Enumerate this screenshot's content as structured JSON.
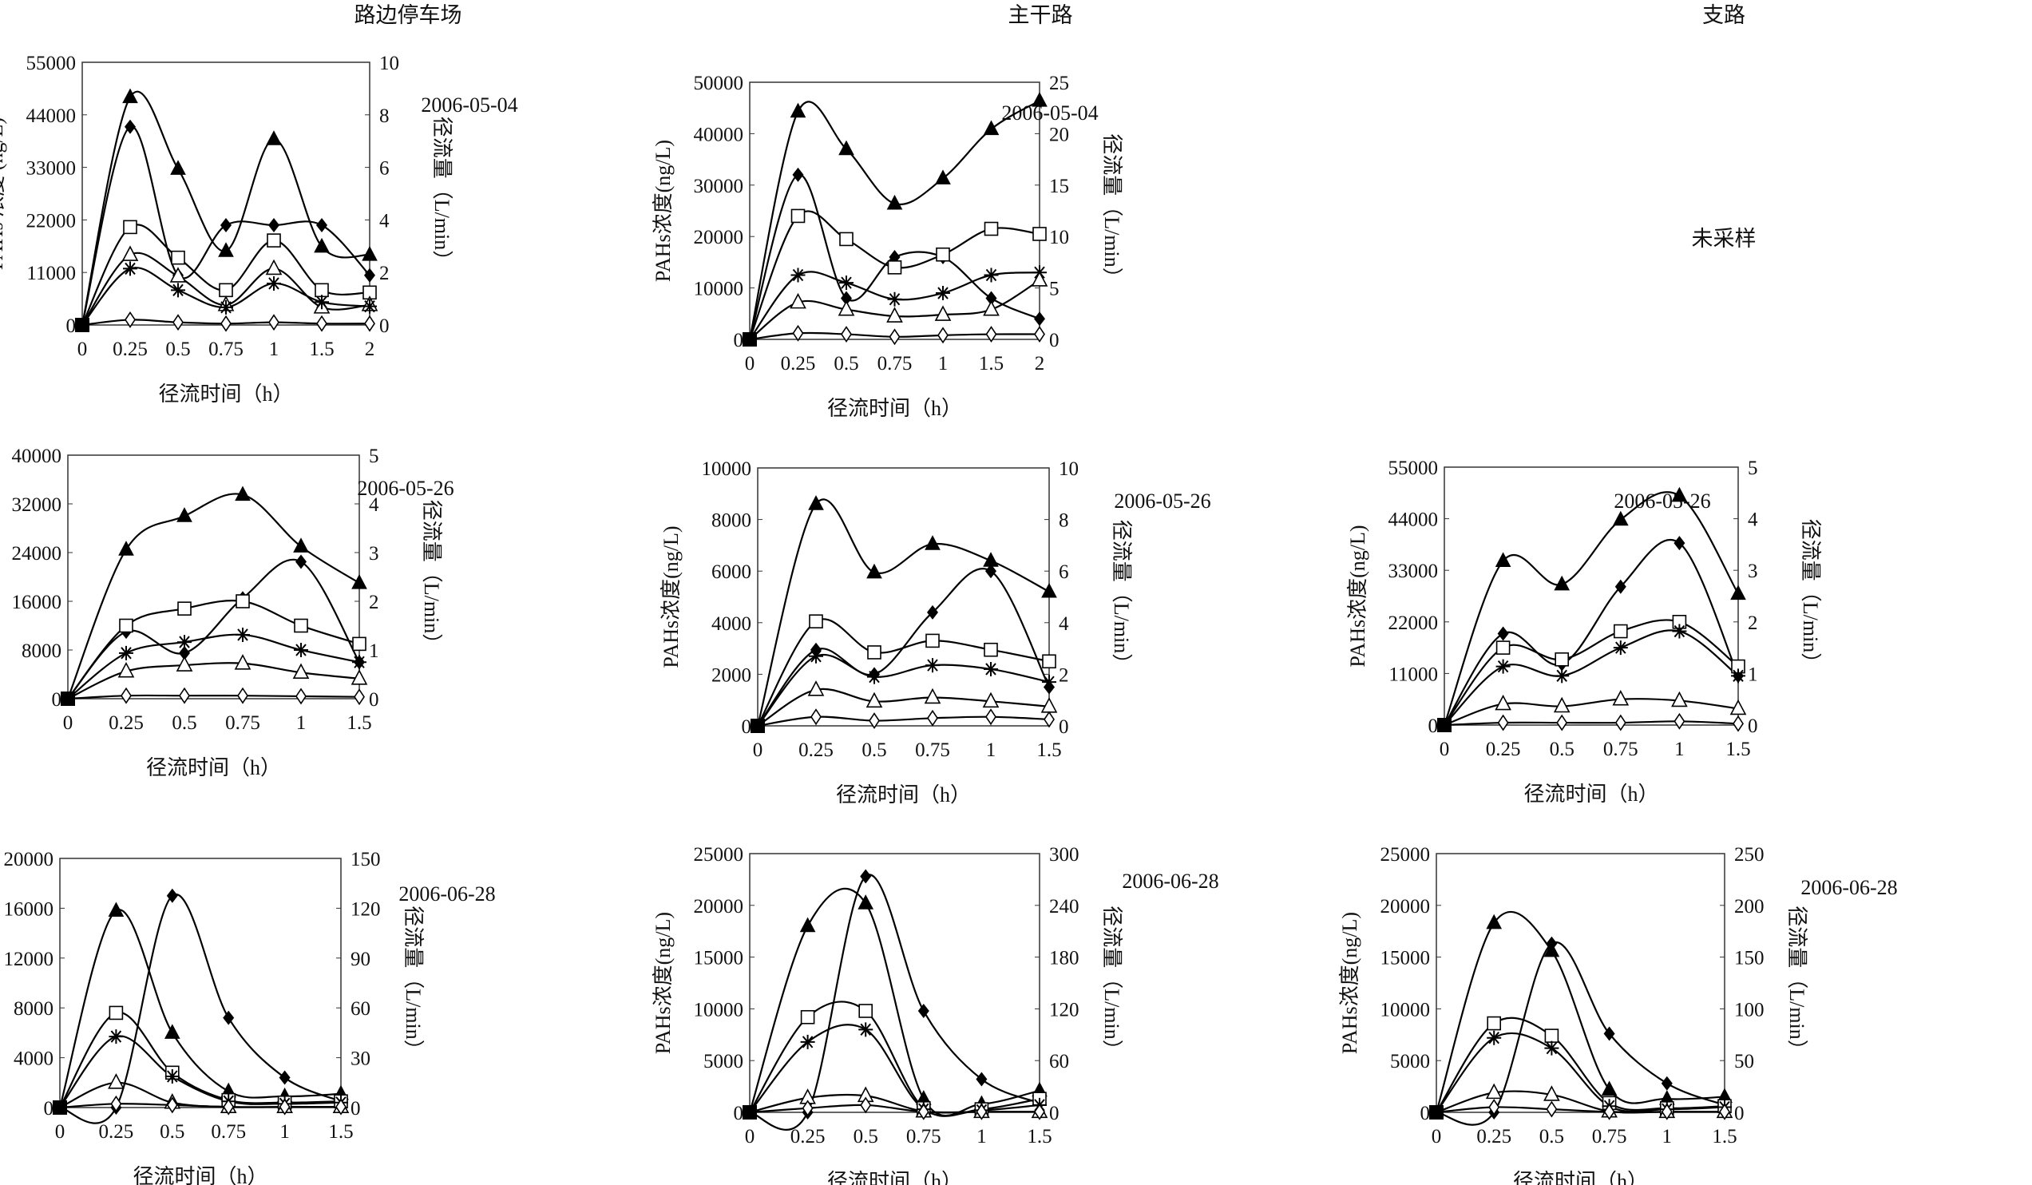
{
  "column_titles": [
    "路边停车场",
    "主干路",
    "支路"
  ],
  "not_sampled_label": "未采样",
  "chart_data": [
    {
      "type": "line",
      "column": "路边停车场",
      "date": "2006-05-04",
      "xlabel": "径流时间（h）",
      "ylabel": "PAHs 浓度 (ng/L)",
      "y2label": "径流量（L/min）",
      "categories": [
        "0",
        "0.25",
        "0.5",
        "0.75",
        "1",
        "1.5",
        "2"
      ],
      "ylim": [
        0,
        55000
      ],
      "yticks": [
        "0",
        "11000",
        "22000",
        "33000",
        "44000",
        "55000"
      ],
      "y2lim": [
        0,
        10
      ],
      "y2ticks": [
        "0",
        "2",
        "4",
        "6",
        "8",
        "10"
      ],
      "series": [
        {
          "marker": "filled-triangle",
          "values": [
            0,
            47700,
            32700,
            15500,
            38900,
            16400,
            14700
          ]
        },
        {
          "marker": "filled-diamond",
          "values": [
            0,
            41500,
            10400,
            20900,
            20900,
            20900,
            10400
          ]
        },
        {
          "marker": "open-square",
          "values": [
            0,
            20500,
            14100,
            7300,
            17700,
            7300,
            6800
          ]
        },
        {
          "marker": "open-triangle",
          "values": [
            0,
            14700,
            10200,
            4200,
            11800,
            3700,
            4200
          ]
        },
        {
          "marker": "asterisk",
          "values": [
            0,
            11800,
            7300,
            3700,
            8700,
            4800,
            3900
          ]
        },
        {
          "marker": "open-diamond",
          "values": [
            0,
            1100,
            560,
            300,
            560,
            300,
            300
          ]
        }
      ]
    },
    {
      "type": "line",
      "column": "主干路",
      "date": "2006-05-04",
      "xlabel": "径流时间（h）",
      "ylabel": "PAHs浓度(ng/L)",
      "y2label": "径流量（L/min）",
      "categories": [
        "0",
        "0.25",
        "0.5",
        "0.75",
        "1",
        "1.5",
        "2"
      ],
      "ylim": [
        0,
        50000
      ],
      "yticks": [
        "0",
        "10000",
        "20000",
        "30000",
        "40000",
        "50000"
      ],
      "y2lim": [
        0,
        25
      ],
      "y2ticks": [
        "0",
        "5",
        "10",
        "15",
        "20",
        "25"
      ],
      "series": [
        {
          "marker": "filled-triangle",
          "values": [
            0,
            44300,
            37000,
            26400,
            31300,
            40900,
            46400
          ]
        },
        {
          "marker": "filled-diamond",
          "values": [
            0,
            32000,
            8000,
            16000,
            16000,
            8000,
            4000
          ]
        },
        {
          "marker": "open-square",
          "values": [
            0,
            24000,
            19500,
            14000,
            16500,
            21500,
            20500
          ]
        },
        {
          "marker": "asterisk",
          "values": [
            0,
            12500,
            11000,
            7800,
            9000,
            12500,
            13000
          ]
        },
        {
          "marker": "open-triangle",
          "values": [
            0,
            7200,
            5800,
            4500,
            4800,
            5800,
            11500
          ]
        },
        {
          "marker": "open-diamond",
          "values": [
            0,
            1200,
            1000,
            500,
            800,
            1000,
            1000
          ]
        }
      ]
    },
    {
      "type": "line",
      "column": "路边停车场",
      "date": "2006-05-26",
      "xlabel": "径流时间（h）",
      "ylabel": "PAHs浓度(ng/L)",
      "y2label": "径流量（L/min）",
      "categories": [
        "0",
        "0.25",
        "0.5",
        "0.75",
        "1",
        "1.5"
      ],
      "ylim": [
        0,
        40000
      ],
      "yticks": [
        "0",
        "8000",
        "16000",
        "24000",
        "32000",
        "40000"
      ],
      "y2lim": [
        0,
        5
      ],
      "y2ticks": [
        "0",
        "1",
        "2",
        "3",
        "4",
        "5"
      ],
      "series": [
        {
          "marker": "filled-triangle",
          "values": [
            0,
            24500,
            30000,
            33500,
            25000,
            19000
          ]
        },
        {
          "marker": "filled-diamond",
          "values": [
            0,
            11000,
            7500,
            16500,
            22500,
            6000
          ]
        },
        {
          "marker": "open-square",
          "values": [
            0,
            12000,
            14800,
            16000,
            12000,
            9000
          ]
        },
        {
          "marker": "asterisk",
          "values": [
            0,
            7500,
            9300,
            10500,
            8000,
            6000
          ]
        },
        {
          "marker": "open-triangle",
          "values": [
            0,
            4500,
            5500,
            5800,
            4300,
            3300
          ]
        },
        {
          "marker": "open-diamond",
          "values": [
            0,
            500,
            500,
            500,
            400,
            300
          ]
        }
      ]
    },
    {
      "type": "line",
      "column": "主干路",
      "date": "2006-05-26",
      "xlabel": "径流时间（h）",
      "ylabel": "PAHs浓度(ng/L)",
      "y2label": "径流量（L/min）",
      "categories": [
        "0",
        "0.25",
        "0.5",
        "0.75",
        "1",
        "1.5"
      ],
      "ylim": [
        0,
        10000
      ],
      "yticks": [
        "0",
        "2000",
        "4000",
        "6000",
        "8000",
        "10000"
      ],
      "y2lim": [
        0,
        10
      ],
      "y2ticks": [
        "0",
        "2",
        "4",
        "6",
        "8",
        "10"
      ],
      "series": [
        {
          "marker": "filled-triangle",
          "values": [
            0,
            8600,
            5950,
            7050,
            6400,
            5200
          ]
        },
        {
          "marker": "filled-diamond",
          "values": [
            0,
            2950,
            2000,
            4400,
            6000,
            1500
          ]
        },
        {
          "marker": "open-square",
          "values": [
            0,
            4050,
            2850,
            3300,
            2950,
            2500
          ]
        },
        {
          "marker": "asterisk",
          "values": [
            0,
            2700,
            1900,
            2350,
            2200,
            1700
          ]
        },
        {
          "marker": "open-triangle",
          "values": [
            0,
            1400,
            950,
            1100,
            950,
            750
          ]
        },
        {
          "marker": "open-diamond",
          "values": [
            0,
            350,
            200,
            300,
            350,
            250
          ]
        }
      ]
    },
    {
      "type": "line",
      "column": "支路",
      "date": "2006-05-26",
      "xlabel": "径流时间（h）",
      "ylabel": "PAHs浓度(ng/L)",
      "y2label": "径流量（L/min）",
      "categories": [
        "0",
        "0.25",
        "0.5",
        "0.75",
        "1",
        "1.5"
      ],
      "ylim": [
        0,
        55000
      ],
      "yticks": [
        "0",
        "11000",
        "22000",
        "33000",
        "44000",
        "55000"
      ],
      "y2lim": [
        0,
        5
      ],
      "y2ticks": [
        "0",
        "1",
        "2",
        "3",
        "4",
        "5"
      ],
      "series": [
        {
          "marker": "filled-triangle",
          "values": [
            0,
            35000,
            30000,
            43800,
            48900,
            28000
          ]
        },
        {
          "marker": "filled-diamond",
          "values": [
            0,
            19500,
            13000,
            29500,
            38800,
            10500
          ]
        },
        {
          "marker": "open-square",
          "values": [
            0,
            16500,
            14000,
            20000,
            22000,
            12500
          ]
        },
        {
          "marker": "asterisk",
          "values": [
            0,
            12500,
            10500,
            16500,
            20000,
            10500
          ]
        },
        {
          "marker": "open-triangle",
          "values": [
            0,
            4500,
            4000,
            5500,
            5200,
            3500
          ]
        },
        {
          "marker": "open-diamond",
          "values": [
            0,
            500,
            500,
            500,
            800,
            300
          ]
        }
      ]
    },
    {
      "type": "line",
      "column": "路边停车场",
      "date": "2006-06-28",
      "xlabel": "径流时间（h）",
      "ylabel": "PAHs浓度(ng/L)",
      "y2label": "径流量（L/min）",
      "categories": [
        "0",
        "0.25",
        "0.5",
        "0.75",
        "1",
        "1.5"
      ],
      "ylim": [
        0,
        20000
      ],
      "yticks": [
        "0",
        "4000",
        "8000",
        "12000",
        "16000",
        "20000"
      ],
      "y2lim": [
        0,
        150
      ],
      "y2ticks": [
        "0",
        "30",
        "60",
        "90",
        "120",
        "150"
      ],
      "series": [
        {
          "marker": "filled-triangle",
          "values": [
            0,
            15800,
            6000,
            1300,
            900,
            1100
          ]
        },
        {
          "marker": "filled-diamond",
          "values": [
            0,
            0,
            17000,
            7200,
            2400,
            500
          ]
        },
        {
          "marker": "open-square",
          "values": [
            0,
            7600,
            2800,
            600,
            400,
            500
          ]
        },
        {
          "marker": "asterisk",
          "values": [
            0,
            5700,
            2500,
            500,
            300,
            400
          ]
        },
        {
          "marker": "open-triangle",
          "values": [
            0,
            2000,
            400,
            50,
            50,
            50
          ]
        },
        {
          "marker": "open-diamond",
          "values": [
            0,
            300,
            200,
            50,
            50,
            50
          ]
        }
      ]
    },
    {
      "type": "line",
      "column": "主干路",
      "date": "2006-06-28",
      "xlabel": "径流时间（h）",
      "ylabel": "PAHs浓度(ng/L)",
      "y2label": "径流量（L/min）",
      "categories": [
        "0",
        "0.25",
        "0.5",
        "0.75",
        "1",
        "1.5"
      ],
      "ylim": [
        0,
        25000
      ],
      "yticks": [
        "0",
        "5000",
        "10000",
        "15000",
        "20000",
        "25000"
      ],
      "y2lim": [
        0,
        300
      ],
      "y2ticks": [
        "0",
        "60",
        "120",
        "180",
        "240",
        "300"
      ],
      "series": [
        {
          "marker": "filled-triangle",
          "values": [
            0,
            18000,
            20200,
            1300,
            800,
            2100
          ]
        },
        {
          "marker": "filled-diamond",
          "values": [
            0,
            0,
            22800,
            9800,
            3200,
            900
          ]
        },
        {
          "marker": "open-square",
          "values": [
            0,
            9200,
            9800,
            400,
            300,
            1300
          ]
        },
        {
          "marker": "asterisk",
          "values": [
            0,
            6800,
            8000,
            300,
            200,
            700
          ]
        },
        {
          "marker": "open-triangle",
          "values": [
            0,
            1400,
            1600,
            100,
            50,
            50
          ]
        },
        {
          "marker": "open-diamond",
          "values": [
            0,
            400,
            700,
            50,
            50,
            50
          ]
        }
      ]
    },
    {
      "type": "line",
      "column": "支路",
      "date": "2006-06-28",
      "xlabel": "径流时间（h）",
      "ylabel": "PAHs浓度(ng/L)",
      "y2label": "径流量（L/min）",
      "categories": [
        "0",
        "0.25",
        "0.5",
        "0.75",
        "1",
        "1.5"
      ],
      "ylim": [
        0,
        25000
      ],
      "yticks": [
        "0",
        "5000",
        "10000",
        "15000",
        "20000",
        "25000"
      ],
      "y2lim": [
        0,
        250
      ],
      "y2ticks": [
        "0",
        "50",
        "100",
        "150",
        "200",
        "250"
      ],
      "series": [
        {
          "marker": "filled-triangle",
          "values": [
            0,
            18300,
            15600,
            2200,
            1300,
            1500
          ]
        },
        {
          "marker": "filled-diamond",
          "values": [
            0,
            0,
            16300,
            7600,
            2800,
            700
          ]
        },
        {
          "marker": "open-square",
          "values": [
            0,
            8600,
            7400,
            900,
            400,
            600
          ]
        },
        {
          "marker": "asterisk",
          "values": [
            0,
            7200,
            6200,
            600,
            300,
            500
          ]
        },
        {
          "marker": "open-triangle",
          "values": [
            0,
            1900,
            1700,
            100,
            50,
            50
          ]
        },
        {
          "marker": "open-diamond",
          "values": [
            0,
            500,
            300,
            50,
            50,
            50
          ]
        }
      ]
    }
  ]
}
